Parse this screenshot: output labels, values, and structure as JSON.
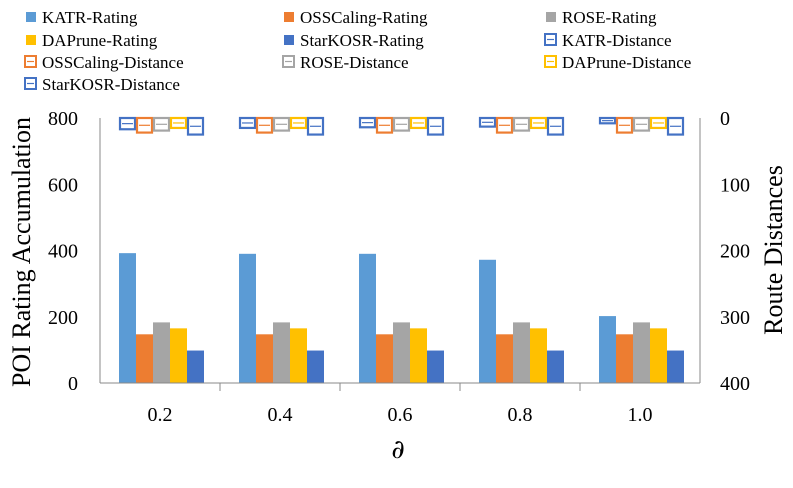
{
  "chart_data": {
    "type": "bar",
    "xlabel": "∂",
    "ylabel": "POI Rating Accumulation",
    "y2label": "Route Distances",
    "ylim": [
      0,
      800
    ],
    "y2lim": [
      400,
      0
    ],
    "yticks": [
      "0",
      "200",
      "400",
      "600",
      "800"
    ],
    "y2ticks": [
      "0",
      "100",
      "200",
      "300",
      "400"
    ],
    "categories": [
      "0.2",
      "0.4",
      "0.6",
      "0.8",
      "1.0"
    ],
    "series": [
      {
        "name": "KATR-Rating",
        "axis": "left",
        "style": "solid",
        "color": "#5B9BD5",
        "values": [
          392,
          390,
          390,
          372,
          202
        ]
      },
      {
        "name": "OSSCaling-Rating",
        "axis": "left",
        "style": "solid",
        "color": "#ED7D31",
        "values": [
          147,
          147,
          147,
          147,
          147
        ]
      },
      {
        "name": "ROSE-Rating",
        "axis": "left",
        "style": "solid",
        "color": "#A5A5A5",
        "values": [
          183,
          183,
          183,
          183,
          183
        ]
      },
      {
        "name": "DAPrune-Rating",
        "axis": "left",
        "style": "solid",
        "color": "#FFC000",
        "values": [
          165,
          165,
          165,
          165,
          165
        ]
      },
      {
        "name": "StarKOSR-Rating",
        "axis": "left",
        "style": "solid",
        "color": "#4472C4",
        "values": [
          98,
          98,
          98,
          98,
          98
        ]
      },
      {
        "name": "KATR-Distance",
        "axis": "right",
        "style": "hollow",
        "color": "#4472C4",
        "values": [
          17,
          15,
          14,
          13,
          8
        ]
      },
      {
        "name": "OSSCaling-Distance",
        "axis": "right",
        "style": "hollow",
        "color": "#ED7D31",
        "values": [
          22,
          22,
          22,
          22,
          22
        ]
      },
      {
        "name": "ROSE-Distance",
        "axis": "right",
        "style": "hollow",
        "color": "#A5A5A5",
        "values": [
          19,
          19,
          19,
          19,
          19
        ]
      },
      {
        "name": "DAPrune-Distance",
        "axis": "right",
        "style": "hollow",
        "color": "#FFC000",
        "values": [
          15,
          15,
          15,
          15,
          15
        ]
      },
      {
        "name": "StarKOSR-Distance",
        "axis": "right",
        "style": "hollow",
        "color": "#4472C4",
        "values": [
          25,
          25,
          25,
          25,
          25
        ]
      }
    ],
    "legend": {
      "position": "top"
    }
  }
}
